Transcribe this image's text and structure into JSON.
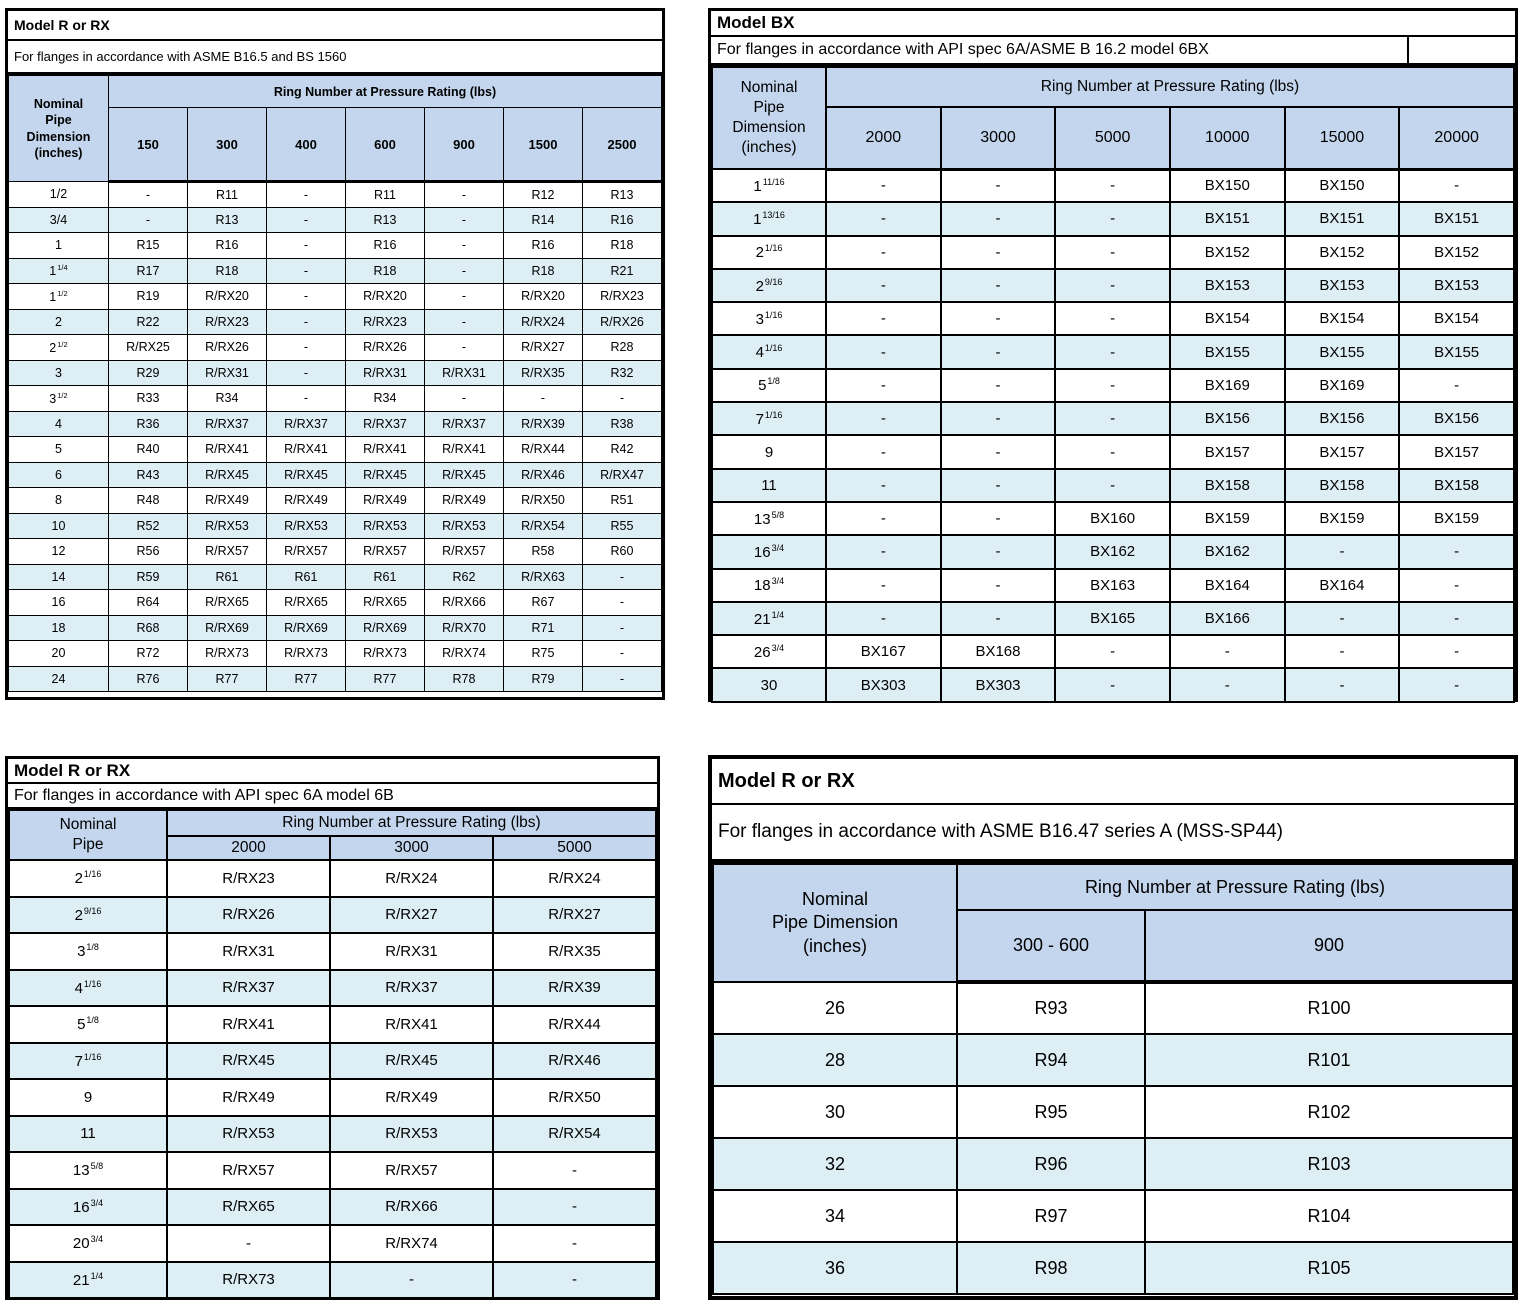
{
  "colors": {
    "header_fill": "#c3d6ee",
    "alt_row_fill": "#ddeef5",
    "row_fill": "#ffffff",
    "border": "#000000"
  },
  "tables": [
    {
      "title": "Model R or RX",
      "subtitle": "For flanges in accordance with ASME B16.5 and BS 1560",
      "pipe_header": "Nominal\nPipe\nDimension\n(inches)",
      "group_header": "Ring Number at Pressure Rating (lbs)",
      "columns": [
        "150",
        "300",
        "400",
        "600",
        "900",
        "1500",
        "2500"
      ],
      "col_widths": [
        "100px",
        "",
        "",
        "",
        "",
        "",
        "",
        ""
      ],
      "rows": [
        {
          "size": "1/2",
          "frac": "",
          "values": [
            "-",
            "R11",
            "-",
            "R11",
            "-",
            "R12",
            "R13"
          ]
        },
        {
          "size": "3/4",
          "frac": "",
          "values": [
            "-",
            "R13",
            "-",
            "R13",
            "-",
            "R14",
            "R16"
          ]
        },
        {
          "size": "1",
          "frac": "",
          "values": [
            "R15",
            "R16",
            "-",
            "R16",
            "-",
            "R16",
            "R18"
          ]
        },
        {
          "size": "1",
          "frac": "1/4",
          "values": [
            "R17",
            "R18",
            "-",
            "R18",
            "-",
            "R18",
            "R21"
          ]
        },
        {
          "size": "1",
          "frac": "1/2",
          "values": [
            "R19",
            "R/RX20",
            "-",
            "R/RX20",
            "-",
            "R/RX20",
            "R/RX23"
          ]
        },
        {
          "size": "2",
          "frac": "",
          "values": [
            "R22",
            "R/RX23",
            "-",
            "R/RX23",
            "-",
            "R/RX24",
            "R/RX26"
          ]
        },
        {
          "size": "2",
          "frac": "1/2",
          "values": [
            "R/RX25",
            "R/RX26",
            "-",
            "R/RX26",
            "-",
            "R/RX27",
            "R28"
          ]
        },
        {
          "size": "3",
          "frac": "",
          "values": [
            "R29",
            "R/RX31",
            "-",
            "R/RX31",
            "R/RX31",
            "R/RX35",
            "R32"
          ]
        },
        {
          "size": "3",
          "frac": "1/2",
          "values": [
            "R33",
            "R34",
            "-",
            "R34",
            "-",
            "-",
            "-"
          ]
        },
        {
          "size": "4",
          "frac": "",
          "values": [
            "R36",
            "R/RX37",
            "R/RX37",
            "R/RX37",
            "R/RX37",
            "R/RX39",
            "R38"
          ]
        },
        {
          "size": "5",
          "frac": "",
          "values": [
            "R40",
            "R/RX41",
            "R/RX41",
            "R/RX41",
            "R/RX41",
            "R/RX44",
            "R42"
          ]
        },
        {
          "size": "6",
          "frac": "",
          "values": [
            "R43",
            "R/RX45",
            "R/RX45",
            "R/RX45",
            "R/RX45",
            "R/RX46",
            "R/RX47"
          ]
        },
        {
          "size": "8",
          "frac": "",
          "values": [
            "R48",
            "R/RX49",
            "R/RX49",
            "R/RX49",
            "R/RX49",
            "R/RX50",
            "R51"
          ]
        },
        {
          "size": "10",
          "frac": "",
          "values": [
            "R52",
            "R/RX53",
            "R/RX53",
            "R/RX53",
            "R/RX53",
            "R/RX54",
            "R55"
          ]
        },
        {
          "size": "12",
          "frac": "",
          "values": [
            "R56",
            "R/RX57",
            "R/RX57",
            "R/RX57",
            "R/RX57",
            "R58",
            "R60"
          ]
        },
        {
          "size": "14",
          "frac": "",
          "values": [
            "R59",
            "R61",
            "R61",
            "R61",
            "R62",
            "R/RX63",
            "-"
          ]
        },
        {
          "size": "16",
          "frac": "",
          "values": [
            "R64",
            "R/RX65",
            "R/RX65",
            "R/RX65",
            "R/RX66",
            "R67",
            "-"
          ]
        },
        {
          "size": "18",
          "frac": "",
          "values": [
            "R68",
            "R/RX69",
            "R/RX69",
            "R/RX69",
            "R/RX70",
            "R71",
            "-"
          ]
        },
        {
          "size": "20",
          "frac": "",
          "values": [
            "R72",
            "R/RX73",
            "R/RX73",
            "R/RX73",
            "R/RX74",
            "R75",
            "-"
          ]
        },
        {
          "size": "24",
          "frac": "",
          "values": [
            "R76",
            "R77",
            "R77",
            "R77",
            "R78",
            "R79",
            "-"
          ]
        }
      ]
    },
    {
      "title": "Model BX",
      "subtitle": "For flanges in accordance with API spec 6A/ASME B 16.2 model 6BX",
      "pipe_header": "Nominal\nPipe\nDimension\n(inches)",
      "group_header": "Ring Number at Pressure Rating (lbs)",
      "columns": [
        "2000",
        "3000",
        "5000",
        "10000",
        "15000",
        "20000"
      ],
      "col_widths": [
        "114px",
        "",
        "",
        "",
        "",
        "",
        ""
      ],
      "rows": [
        {
          "size": "1",
          "frac": "11/16",
          "values": [
            "-",
            "-",
            "-",
            "BX150",
            "BX150",
            "-"
          ]
        },
        {
          "size": "1",
          "frac": "13/16",
          "values": [
            "-",
            "-",
            "-",
            "BX151",
            "BX151",
            "BX151"
          ]
        },
        {
          "size": "2",
          "frac": "1/16",
          "values": [
            "-",
            "-",
            "-",
            "BX152",
            "BX152",
            "BX152"
          ]
        },
        {
          "size": "2",
          "frac": "9/16",
          "values": [
            "-",
            "-",
            "-",
            "BX153",
            "BX153",
            "BX153"
          ]
        },
        {
          "size": "3",
          "frac": "1/16",
          "values": [
            "-",
            "-",
            "-",
            "BX154",
            "BX154",
            "BX154"
          ]
        },
        {
          "size": "4",
          "frac": "1/16",
          "values": [
            "-",
            "-",
            "-",
            "BX155",
            "BX155",
            "BX155"
          ]
        },
        {
          "size": "5",
          "frac": "1/8",
          "values": [
            "-",
            "-",
            "-",
            "BX169",
            "BX169",
            "-"
          ]
        },
        {
          "size": "7",
          "frac": "1/16",
          "values": [
            "-",
            "-",
            "-",
            "BX156",
            "BX156",
            "BX156"
          ]
        },
        {
          "size": "9",
          "frac": "",
          "values": [
            "-",
            "-",
            "-",
            "BX157",
            "BX157",
            "BX157"
          ]
        },
        {
          "size": "11",
          "frac": "",
          "values": [
            "-",
            "-",
            "-",
            "BX158",
            "BX158",
            "BX158"
          ]
        },
        {
          "size": "13",
          "frac": "5/8",
          "values": [
            "-",
            "-",
            "BX160",
            "BX159",
            "BX159",
            "BX159"
          ]
        },
        {
          "size": "16",
          "frac": "3/4",
          "values": [
            "-",
            "-",
            "BX162",
            "BX162",
            "-",
            "-"
          ]
        },
        {
          "size": "18",
          "frac": "3/4",
          "values": [
            "-",
            "-",
            "BX163",
            "BX164",
            "BX164",
            "-"
          ]
        },
        {
          "size": "21",
          "frac": "1/4",
          "values": [
            "-",
            "-",
            "BX165",
            "BX166",
            "-",
            "-"
          ]
        },
        {
          "size": "26",
          "frac": "3/4",
          "values": [
            "BX167",
            "BX168",
            "-",
            "-",
            "-",
            "-"
          ]
        },
        {
          "size": "30",
          "frac": "",
          "values": [
            "BX303",
            "BX303",
            "-",
            "-",
            "-",
            "-"
          ]
        }
      ]
    },
    {
      "title": "Model R or RX",
      "subtitle": "For flanges in accordance with API spec 6A model 6B",
      "pipe_header": "Nominal\nPipe",
      "group_header": "Ring Number at Pressure Rating (lbs)",
      "columns": [
        "2000",
        "3000",
        "5000"
      ],
      "col_widths": [
        "158px",
        "",
        "",
        ""
      ],
      "rows": [
        {
          "size": "2",
          "frac": "1/16",
          "values": [
            "R/RX23",
            "R/RX24",
            "R/RX24"
          ]
        },
        {
          "size": "2",
          "frac": "9/16",
          "values": [
            "R/RX26",
            "R/RX27",
            "R/RX27"
          ]
        },
        {
          "size": "3",
          "frac": "1/8",
          "values": [
            "R/RX31",
            "R/RX31",
            "R/RX35"
          ]
        },
        {
          "size": "4",
          "frac": "1/16",
          "values": [
            "R/RX37",
            "R/RX37",
            "R/RX39"
          ]
        },
        {
          "size": "5",
          "frac": "1/8",
          "values": [
            "R/RX41",
            "R/RX41",
            "R/RX44"
          ]
        },
        {
          "size": "7",
          "frac": "1/16",
          "values": [
            "R/RX45",
            "R/RX45",
            "R/RX46"
          ]
        },
        {
          "size": "9",
          "frac": "",
          "values": [
            "R/RX49",
            "R/RX49",
            "R/RX50"
          ]
        },
        {
          "size": "11",
          "frac": "",
          "values": [
            "R/RX53",
            "R/RX53",
            "R/RX54"
          ]
        },
        {
          "size": "13",
          "frac": "5/8",
          "values": [
            "R/RX57",
            "R/RX57",
            "-"
          ]
        },
        {
          "size": "16",
          "frac": "3/4",
          "values": [
            "R/RX65",
            "R/RX66",
            "-"
          ]
        },
        {
          "size": "20",
          "frac": "3/4",
          "values": [
            "-",
            "R/RX74",
            "-"
          ]
        },
        {
          "size": "21",
          "frac": "1/4",
          "values": [
            "R/RX73",
            "-",
            "-"
          ]
        }
      ]
    },
    {
      "title": "Model R or RX",
      "subtitle": "For flanges in accordance with ASME B16.47 series A (MSS-SP44)",
      "pipe_header": "Nominal\nPipe Dimension\n(inches)",
      "group_header": "Ring Number at Pressure Rating (lbs)",
      "columns": [
        "300 - 600",
        "900"
      ],
      "col_widths": [
        "244px",
        "188px",
        ""
      ],
      "rows": [
        {
          "size": "26",
          "frac": "",
          "values": [
            "R93",
            "R100"
          ]
        },
        {
          "size": "28",
          "frac": "",
          "values": [
            "R94",
            "R101"
          ]
        },
        {
          "size": "30",
          "frac": "",
          "values": [
            "R95",
            "R102"
          ]
        },
        {
          "size": "32",
          "frac": "",
          "values": [
            "R96",
            "R103"
          ]
        },
        {
          "size": "34",
          "frac": "",
          "values": [
            "R97",
            "R104"
          ]
        },
        {
          "size": "36",
          "frac": "",
          "values": [
            "R98",
            "R105"
          ]
        }
      ]
    }
  ]
}
